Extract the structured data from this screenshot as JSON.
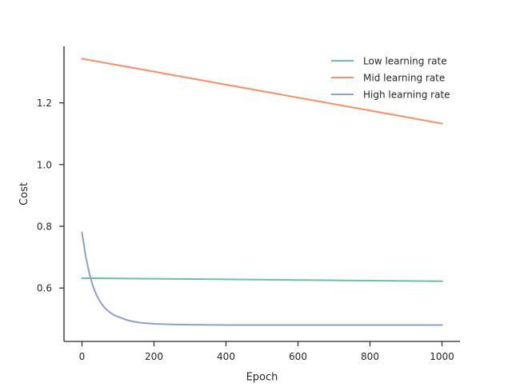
{
  "chart_data": {
    "type": "line",
    "title": "",
    "xlabel": "Epoch",
    "ylabel": "Cost",
    "xlim": [
      -50,
      1050
    ],
    "ylim": [
      0.427,
      1.383
    ],
    "xticks": [
      0,
      200,
      400,
      600,
      800,
      1000
    ],
    "yticks": [
      0.6,
      0.8,
      1.0,
      1.2
    ],
    "grid": false,
    "legend_position": "top-right",
    "series": [
      {
        "name": "Low learning rate",
        "color": "#66c2a5",
        "x": [
          0,
          100,
          200,
          300,
          400,
          500,
          600,
          700,
          800,
          900,
          1000
        ],
        "y": [
          0.632,
          0.631,
          0.63,
          0.629,
          0.628,
          0.627,
          0.626,
          0.625,
          0.624,
          0.623,
          0.622
        ]
      },
      {
        "name": "Mid learning rate",
        "color": "#fc8d62",
        "x": [
          0,
          100,
          200,
          300,
          400,
          500,
          600,
          700,
          800,
          900,
          1000
        ],
        "y": [
          1.343,
          1.322,
          1.301,
          1.28,
          1.259,
          1.238,
          1.217,
          1.196,
          1.175,
          1.154,
          1.133
        ]
      },
      {
        "name": "High learning rate",
        "color": "#8da0cb",
        "x": [
          0,
          10,
          20,
          30,
          40,
          50,
          60,
          70,
          80,
          90,
          100,
          120,
          140,
          160,
          180,
          200,
          250,
          300,
          400,
          500,
          600,
          700,
          800,
          900,
          1000
        ],
        "y": [
          0.78,
          0.704,
          0.649,
          0.608,
          0.578,
          0.556,
          0.54,
          0.528,
          0.519,
          0.512,
          0.507,
          0.498,
          0.492,
          0.488,
          0.486,
          0.484,
          0.482,
          0.481,
          0.48,
          0.48,
          0.48,
          0.48,
          0.48,
          0.48,
          0.48
        ]
      }
    ]
  }
}
